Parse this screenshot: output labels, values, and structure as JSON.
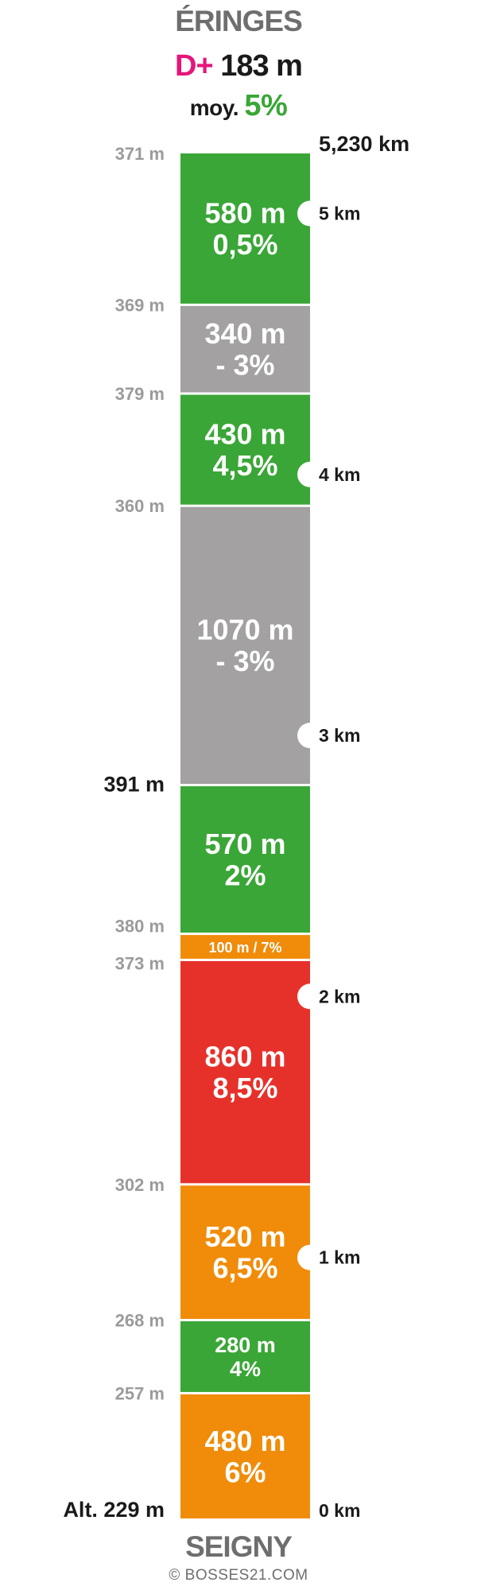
{
  "header": {
    "top_title": "ÉRINGES",
    "dplus_label": "D+",
    "dplus_value": "183 m",
    "moy_label": "moy.",
    "moy_value": "5%"
  },
  "footer": {
    "bottom_title": "SEIGNY",
    "copyright": "© BOSSES21.COM"
  },
  "colors": {
    "green": "#3aa637",
    "gray": "#a3a1a2",
    "orange": "#f08c0a",
    "red": "#e6312b",
    "accent_pink": "#e5157a"
  },
  "chart_data": {
    "type": "bar",
    "orientation": "vertical-stacked",
    "total_distance_km": 5.23,
    "segments": [
      {
        "length_label": "480 m",
        "grade_label": "6%",
        "length_m": 480,
        "grade_pct": 6,
        "color": "orange"
      },
      {
        "length_label": "280 m",
        "grade_label": "4%",
        "length_m": 280,
        "grade_pct": 4,
        "color": "green"
      },
      {
        "length_label": "520 m",
        "grade_label": "6,5%",
        "length_m": 520,
        "grade_pct": 6.5,
        "color": "orange"
      },
      {
        "length_label": "860 m",
        "grade_label": "8,5%",
        "length_m": 860,
        "grade_pct": 8.5,
        "color": "red"
      },
      {
        "length_label": "100 m / 7%",
        "grade_label": "",
        "length_m": 100,
        "grade_pct": 7,
        "color": "orange"
      },
      {
        "length_label": "570 m",
        "grade_label": "2%",
        "length_m": 570,
        "grade_pct": 2,
        "color": "green"
      },
      {
        "length_label": "1070 m",
        "grade_label": "- 3%",
        "length_m": 1070,
        "grade_pct": -3,
        "color": "gray"
      },
      {
        "length_label": "430 m",
        "grade_label": "4,5%",
        "length_m": 430,
        "grade_pct": 4.5,
        "color": "green"
      },
      {
        "length_label": "340 m",
        "grade_label": "- 3%",
        "length_m": 340,
        "grade_pct": -3,
        "color": "gray"
      },
      {
        "length_label": "580 m",
        "grade_label": "0,5%",
        "length_m": 580,
        "grade_pct": 0.5,
        "color": "green"
      }
    ],
    "altitudes": [
      {
        "label": "Alt. 229 m",
        "emphasis": true
      },
      {
        "label": "257 m",
        "emphasis": false
      },
      {
        "label": "268 m",
        "emphasis": false
      },
      {
        "label": "302 m",
        "emphasis": false
      },
      {
        "label": "373 m",
        "emphasis": false
      },
      {
        "label": "380 m",
        "emphasis": false
      },
      {
        "label": "391 m",
        "emphasis": true
      },
      {
        "label": "360 m",
        "emphasis": false
      },
      {
        "label": "379 m",
        "emphasis": false
      },
      {
        "label": "369 m",
        "emphasis": false
      },
      {
        "label": "371 m",
        "emphasis": false
      }
    ],
    "km_markers": [
      {
        "km": 0,
        "label": "0 km",
        "notch": false
      },
      {
        "km": 1,
        "label": "1 km",
        "notch": true
      },
      {
        "km": 2,
        "label": "2 km",
        "notch": true
      },
      {
        "km": 3,
        "label": "3 km",
        "notch": true
      },
      {
        "km": 4,
        "label": "4 km",
        "notch": true
      },
      {
        "km": 5,
        "label": "5 km",
        "notch": true
      }
    ],
    "finish_distance_label": "5,230 km"
  }
}
